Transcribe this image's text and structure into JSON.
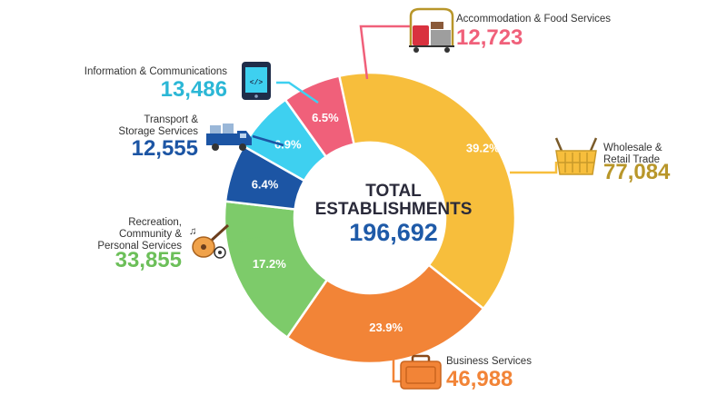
{
  "chart_data": {
    "type": "pie",
    "center_title": [
      "TOTAL",
      "ESTABLISHMENTS"
    ],
    "total": "196,692",
    "slices": [
      {
        "label": [
          "Wholesale &",
          "Retail Trade"
        ],
        "value": "77,084",
        "percent": 39.2,
        "percent_label": "39.2%",
        "color": "#F7BE3C",
        "value_color": "#B8962A",
        "icon": "shopping-basket-icon"
      },
      {
        "label": [
          "Business Services"
        ],
        "value": "46,988",
        "percent": 23.9,
        "percent_label": "23.9%",
        "color": "#F28437",
        "value_color": "#F28437",
        "icon": "briefcase-icon"
      },
      {
        "label": [
          "Recreation,",
          "Community &",
          "Personal Services"
        ],
        "value": "33,855",
        "percent": 17.2,
        "percent_label": "17.2%",
        "color": "#7DCB6A",
        "value_color": "#6CBF59",
        "icon": "guitar-icon"
      },
      {
        "label": [
          "Transport &",
          "Storage Services"
        ],
        "value": "12,555",
        "percent": 6.4,
        "percent_label": "6.4%",
        "color": "#1C55A4",
        "value_color": "#1C55A4",
        "icon": "truck-icon"
      },
      {
        "label": [
          "Information & Communications"
        ],
        "value": "13,486",
        "percent": 6.9,
        "percent_label": "6.9%",
        "color": "#3ED0F0",
        "value_color": "#2BB7D6",
        "icon": "tablet-code-icon"
      },
      {
        "label": [
          "Accommodation & Food Services"
        ],
        "value": "12,723",
        "percent": 6.5,
        "percent_label": "6.5%",
        "color": "#F0607A",
        "value_color": "#F0607A",
        "icon": "luggage-cart-icon"
      }
    ]
  }
}
